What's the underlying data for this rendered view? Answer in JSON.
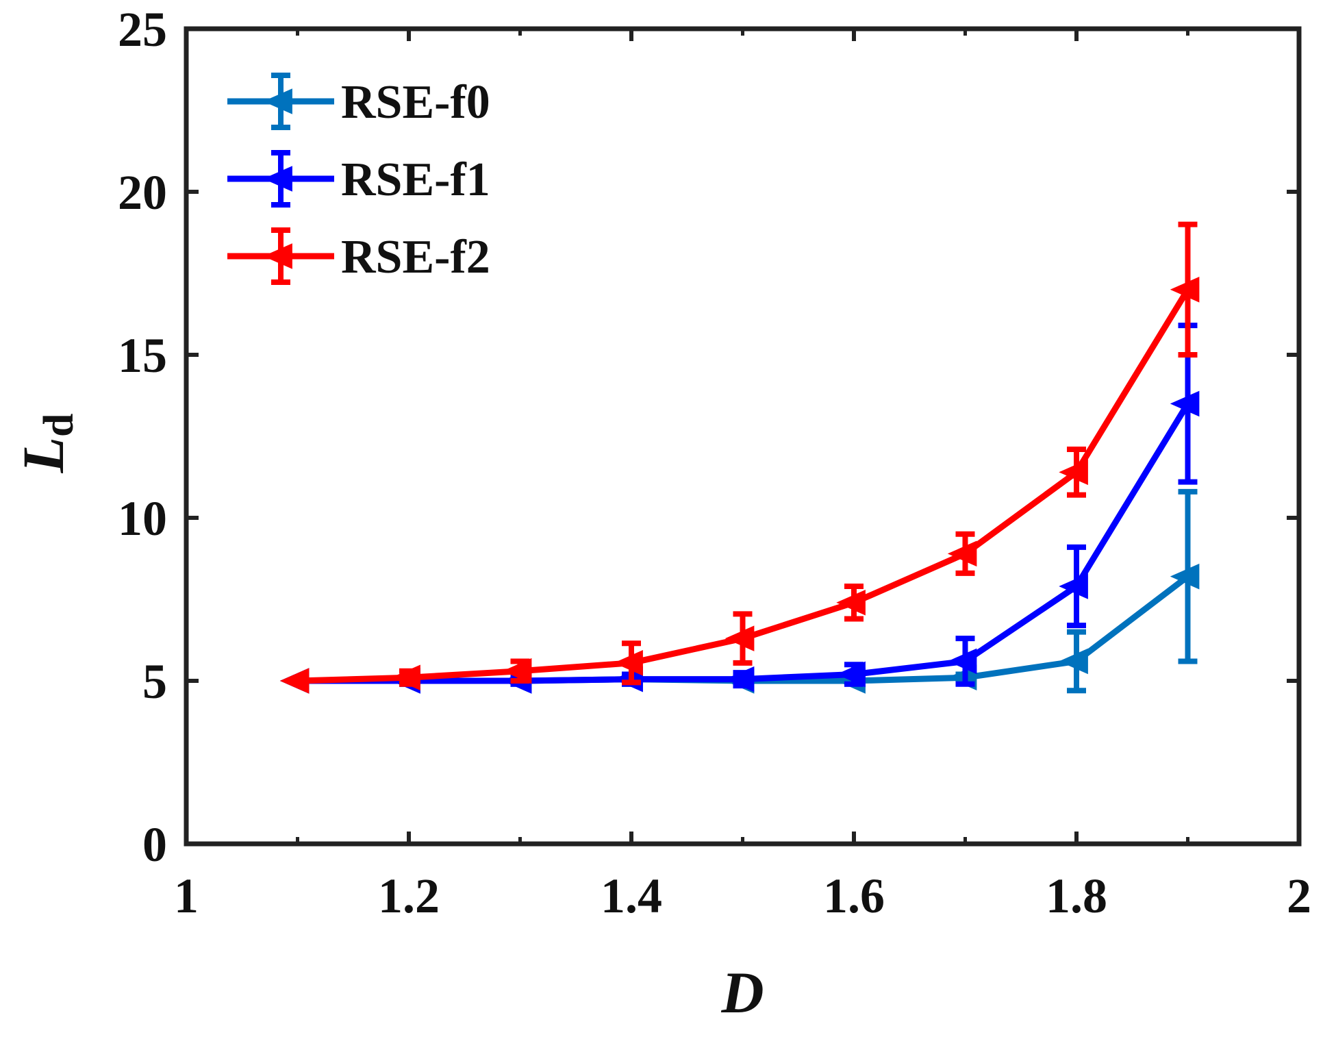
{
  "chart_data": {
    "type": "line",
    "title": "",
    "xlabel": "D",
    "ylabel": "L",
    "ylabel_subscript": "d",
    "xlim": [
      1,
      2
    ],
    "ylim": [
      0,
      25
    ],
    "xticks": [
      1,
      1.2,
      1.4,
      1.6,
      1.8,
      2
    ],
    "xtick_labels": [
      "1",
      "1.2",
      "1.4",
      "1.6",
      "1.8",
      "2"
    ],
    "yticks": [
      0,
      5,
      10,
      15,
      20,
      25
    ],
    "ytick_labels": [
      "0",
      "5",
      "10",
      "15",
      "20",
      "25"
    ],
    "grid": false,
    "legend_position": "top-left",
    "x": [
      1.1,
      1.2,
      1.3,
      1.4,
      1.5,
      1.6,
      1.7,
      1.8,
      1.9
    ],
    "series": [
      {
        "name": "RSE-f0",
        "color": "#0072BD",
        "values": [
          5.0,
          5.0,
          5.0,
          5.05,
          5.0,
          5.0,
          5.1,
          5.6,
          8.2
        ],
        "errors": [
          0.0,
          0.1,
          0.1,
          0.15,
          0.1,
          0.1,
          0.1,
          0.9,
          2.6
        ]
      },
      {
        "name": "RSE-f1",
        "color": "#0000FF",
        "values": [
          5.0,
          5.0,
          5.0,
          5.05,
          5.05,
          5.2,
          5.6,
          7.9,
          13.5
        ],
        "errors": [
          0.0,
          0.1,
          0.1,
          0.15,
          0.2,
          0.3,
          0.7,
          1.2,
          2.4
        ]
      },
      {
        "name": "RSE-f2",
        "color": "#FF0000",
        "values": [
          5.0,
          5.1,
          5.3,
          5.55,
          6.3,
          7.4,
          8.9,
          11.4,
          17.0
        ],
        "errors": [
          0.0,
          0.2,
          0.3,
          0.6,
          0.75,
          0.5,
          0.6,
          0.7,
          2.0
        ]
      }
    ]
  }
}
